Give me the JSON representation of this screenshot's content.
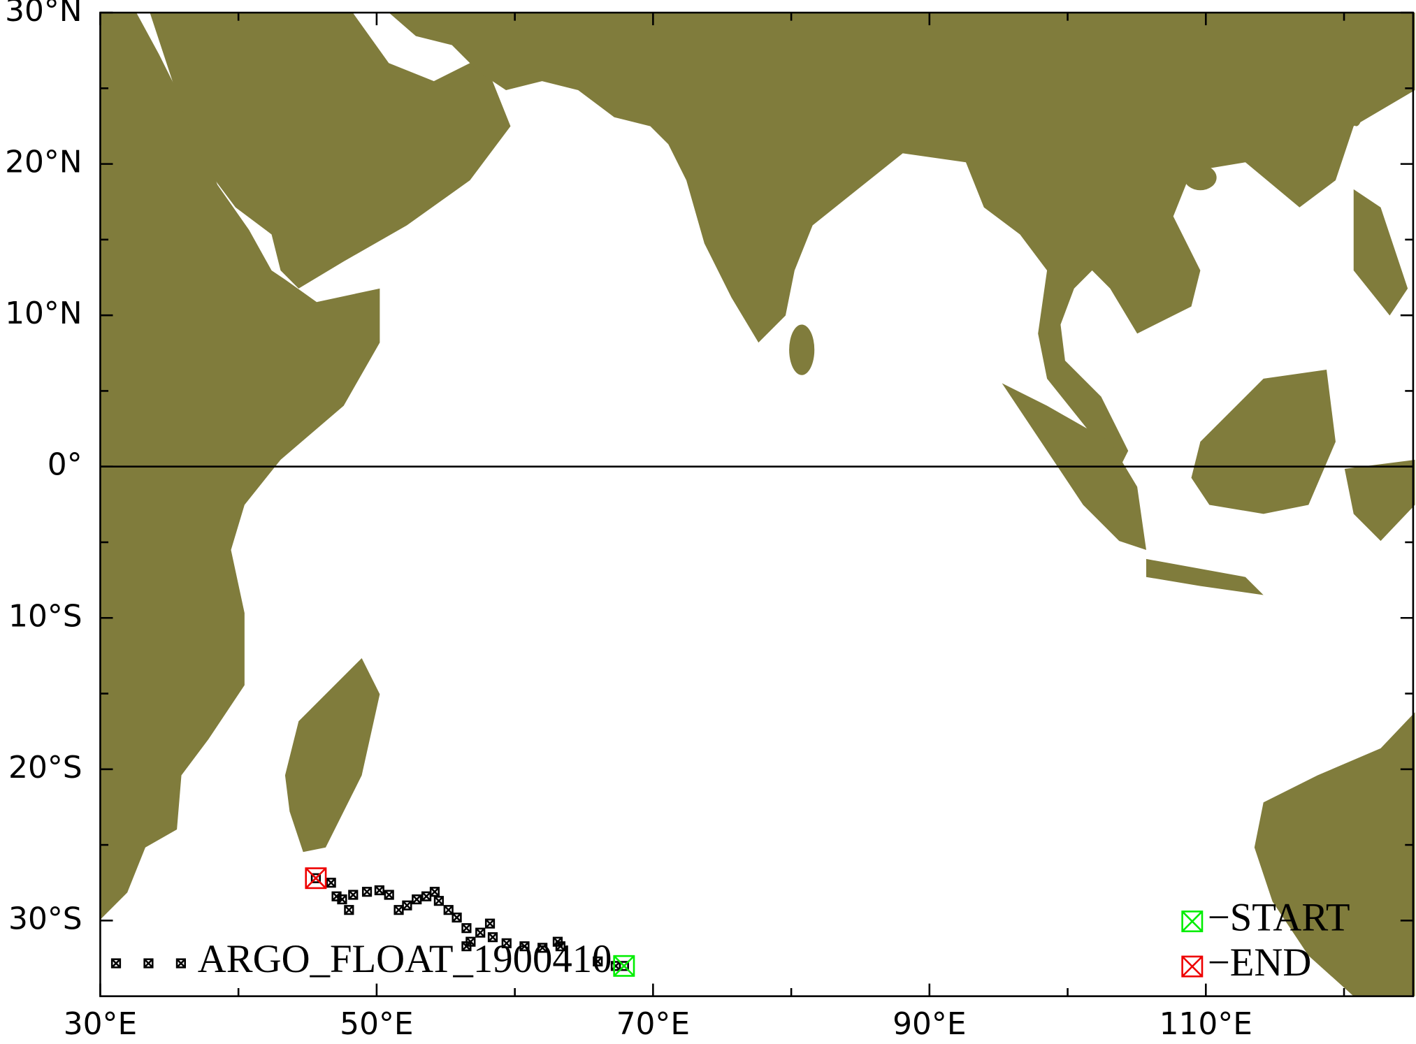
{
  "chart_data": {
    "type": "scatter",
    "xlim": [
      30,
      125
    ],
    "ylim": [
      -35,
      30
    ],
    "xticks": [
      {
        "value": 30,
        "label": "30°E"
      },
      {
        "value": 50,
        "label": "50°E"
      },
      {
        "value": 70,
        "label": "70°E"
      },
      {
        "value": 90,
        "label": "90°E"
      },
      {
        "value": 110,
        "label": "110°E"
      }
    ],
    "x_minor_ticks": [
      40,
      60,
      80,
      100,
      120
    ],
    "yticks": [
      {
        "value": 30,
        "label": "30°N"
      },
      {
        "value": 20,
        "label": "20°N"
      },
      {
        "value": 10,
        "label": "10°N"
      },
      {
        "value": 0,
        "label": "0°"
      },
      {
        "value": -10,
        "label": "10°S"
      },
      {
        "value": -20,
        "label": "20°S"
      },
      {
        "value": -30,
        "label": "30°S"
      }
    ],
    "y_minor_ticks": [
      25,
      15,
      5,
      -5,
      -15,
      -25
    ],
    "reference_line_y": 0,
    "land_color": "#807c3c",
    "series": [
      {
        "name": "ARGO_FLOAT_1900410",
        "color": "#000000",
        "x": [
          67.9,
          67.3,
          66.0,
          63.3,
          63.1,
          62.0,
          60.7,
          59.4,
          58.4,
          58.2,
          57.5,
          56.8,
          56.5,
          56.5,
          55.8,
          55.2,
          54.5,
          54.2,
          53.6,
          52.9,
          52.2,
          51.6,
          50.9,
          50.2,
          49.3,
          48.3,
          48.0,
          47.5,
          47.1,
          46.7,
          45.6
        ],
        "values": [
          -33.0,
          -33.0,
          -32.7,
          -31.7,
          -31.4,
          -31.8,
          -31.7,
          -31.5,
          -31.1,
          -30.2,
          -30.8,
          -31.4,
          -31.7,
          -30.5,
          -29.8,
          -29.3,
          -28.7,
          -28.1,
          -28.4,
          -28.6,
          -29.0,
          -29.3,
          -28.3,
          -28.0,
          -28.1,
          -28.3,
          -29.3,
          -28.6,
          -28.4,
          -27.5,
          -27.2
        ]
      }
    ],
    "start_label": "−START",
    "start_color": "#00ee00",
    "end_label": "−END",
    "end_color": "#ee0000"
  }
}
